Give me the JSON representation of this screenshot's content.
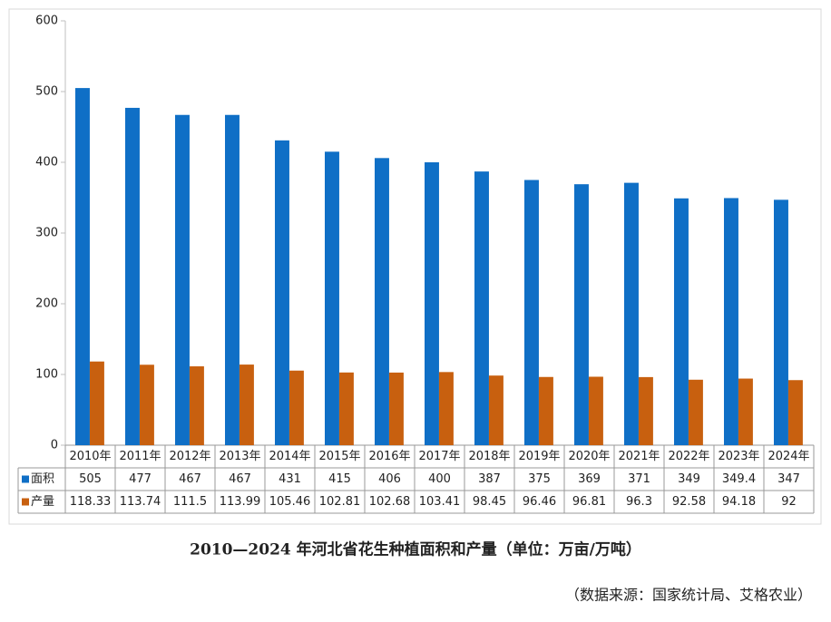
{
  "chart_data": {
    "type": "bar",
    "title": "2010—2024 年河北省花生种植面积和产量（单位：万亩/万吨）",
    "source": "（数据来源：国家统计局、艾格农业）",
    "categories": [
      "2010年",
      "2011年",
      "2012年",
      "2013年",
      "2014年",
      "2015年",
      "2016年",
      "2017年",
      "2018年",
      "2019年",
      "2020年",
      "2021年",
      "2022年",
      "2023年",
      "2024年"
    ],
    "series": [
      {
        "name": "面积",
        "color": "#0f6fc6",
        "values": [
          505,
          477,
          467,
          467,
          431,
          415,
          406,
          400,
          387,
          375,
          369,
          371,
          349,
          349.4,
          347
        ]
      },
      {
        "name": "产量",
        "color": "#c8600f",
        "values": [
          118.33,
          113.74,
          111.5,
          113.99,
          105.46,
          102.81,
          102.68,
          103.41,
          98.45,
          96.46,
          96.81,
          96.3,
          92.58,
          94.18,
          92
        ]
      }
    ],
    "ylim": [
      0,
      600
    ],
    "yticks": [
      0,
      100,
      200,
      300,
      400,
      500,
      600
    ]
  }
}
